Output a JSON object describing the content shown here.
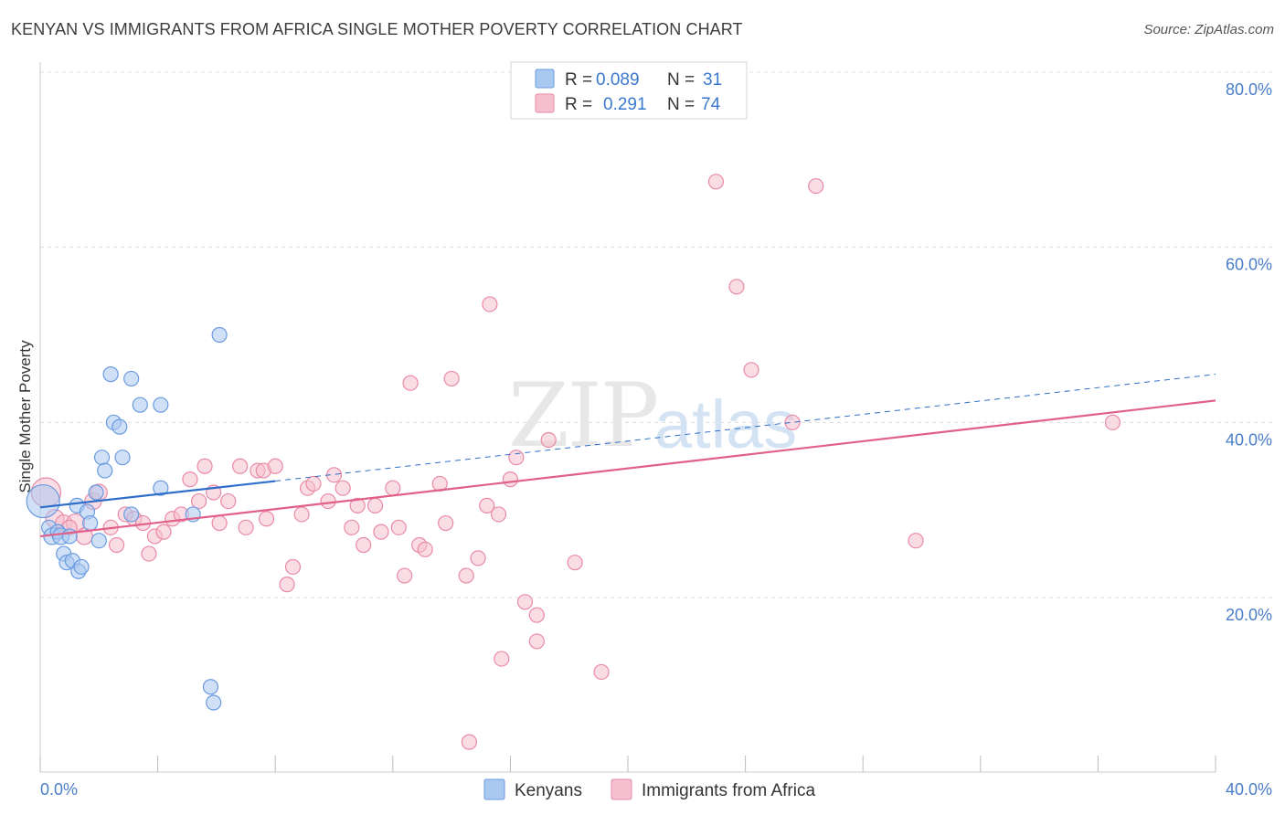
{
  "title": "KENYAN VS IMMIGRANTS FROM AFRICA SINGLE MOTHER POVERTY CORRELATION CHART",
  "source": "Source: ZipAtlas.com",
  "watermark": {
    "zip": "ZIP",
    "atlas": "atlas"
  },
  "colors": {
    "blue_fill": "#a9c9f0",
    "blue_stroke": "#6a9be0",
    "blue_line": "#2f6ec9",
    "pink_fill": "#f6bfcf",
    "pink_stroke": "#e98aa6",
    "pink_line": "#e0608a",
    "grid": "#dddddd",
    "tick_text": "#4a7ec9"
  },
  "legend": {
    "rows": [
      {
        "r_label": "R =",
        "r_value": "0.089",
        "n_label": "N =",
        "n_value": "31"
      },
      {
        "r_label": "R =",
        "r_value": "0.291",
        "n_label": "N =",
        "n_value": "74"
      }
    ]
  },
  "bottom_legend": [
    "Kenyans",
    "Immigrants from Africa"
  ],
  "chart_data": {
    "type": "scatter",
    "title": "KENYAN VS IMMIGRANTS FROM AFRICA SINGLE MOTHER POVERTY CORRELATION CHART",
    "xlabel": "",
    "ylabel": "Single Mother Poverty",
    "xlim": [
      0,
      40
    ],
    "ylim": [
      0,
      80
    ],
    "x_tick_labels": [
      "0.0%",
      "40.0%"
    ],
    "y_ticks": [
      20,
      40,
      60,
      80
    ],
    "y_tick_labels": [
      "20.0%",
      "40.0%",
      "60.0%",
      "80.0%"
    ],
    "grid": true,
    "legend_position": "top-center",
    "series": [
      {
        "name": "Kenyans",
        "r": 0.089,
        "n": 31,
        "trend": {
          "x0": 0,
          "y0": 30.3,
          "x1": 8,
          "y1": 33.3,
          "dashed_to_x": 40,
          "dashed_y1": 45.5
        },
        "points": [
          [
            0.1,
            31.0,
            18
          ],
          [
            0.3,
            28.0,
            8
          ],
          [
            0.4,
            27.0,
            9
          ],
          [
            0.6,
            27.5,
            8
          ],
          [
            0.7,
            27.0,
            9
          ],
          [
            0.8,
            25.0,
            8
          ],
          [
            0.9,
            24.0,
            8
          ],
          [
            1.1,
            24.2,
            8
          ],
          [
            1.3,
            23.0,
            8
          ],
          [
            1.4,
            23.5,
            8
          ],
          [
            1.25,
            30.5,
            8
          ],
          [
            1.6,
            29.8,
            8
          ],
          [
            1.7,
            28.5,
            8
          ],
          [
            1.9,
            32.0,
            8
          ],
          [
            2.0,
            26.5,
            8
          ],
          [
            2.1,
            36.0,
            8
          ],
          [
            2.2,
            34.5,
            8
          ],
          [
            2.4,
            45.5,
            8
          ],
          [
            2.5,
            40.0,
            8
          ],
          [
            2.7,
            39.5,
            8
          ],
          [
            2.8,
            36.0,
            8
          ],
          [
            3.1,
            29.5,
            8
          ],
          [
            3.1,
            45.0,
            8
          ],
          [
            3.4,
            42.0,
            8
          ],
          [
            4.1,
            42.0,
            8
          ],
          [
            4.1,
            32.5,
            8
          ],
          [
            5.2,
            29.5,
            8
          ],
          [
            5.8,
            9.8,
            8
          ],
          [
            5.9,
            8.0,
            8
          ],
          [
            6.1,
            50.0,
            8
          ],
          [
            1.0,
            27.0,
            8
          ]
        ]
      },
      {
        "name": "Immigrants from Africa",
        "r": 0.291,
        "n": 74,
        "trend": {
          "x0": 0,
          "y0": 27.0,
          "x1": 40,
          "y1": 42.5
        },
        "points": [
          [
            0.2,
            32.0,
            16
          ],
          [
            0.5,
            29.0,
            10
          ],
          [
            0.8,
            28.5,
            9
          ],
          [
            1.2,
            28.5,
            10
          ],
          [
            1.5,
            27.0,
            9
          ],
          [
            1.8,
            31.0,
            9
          ],
          [
            2.0,
            32.0,
            9
          ],
          [
            2.4,
            28.0,
            8
          ],
          [
            2.6,
            26.0,
            8
          ],
          [
            2.9,
            29.5,
            8
          ],
          [
            3.2,
            29.0,
            8
          ],
          [
            3.5,
            28.5,
            8
          ],
          [
            3.7,
            25.0,
            8
          ],
          [
            3.9,
            27.0,
            8
          ],
          [
            4.2,
            27.5,
            8
          ],
          [
            4.5,
            29.0,
            8
          ],
          [
            4.8,
            29.5,
            8
          ],
          [
            5.1,
            33.5,
            8
          ],
          [
            5.4,
            31.0,
            8
          ],
          [
            5.6,
            35.0,
            8
          ],
          [
            5.9,
            32.0,
            8
          ],
          [
            6.1,
            28.5,
            8
          ],
          [
            6.4,
            31.0,
            8
          ],
          [
            6.8,
            35.0,
            8
          ],
          [
            7.0,
            28.0,
            8
          ],
          [
            7.4,
            34.5,
            8
          ],
          [
            7.6,
            34.5,
            8
          ],
          [
            7.7,
            29.0,
            8
          ],
          [
            8.0,
            35.0,
            8
          ],
          [
            8.4,
            21.5,
            8
          ],
          [
            8.6,
            23.5,
            8
          ],
          [
            8.9,
            29.5,
            8
          ],
          [
            9.1,
            32.5,
            8
          ],
          [
            9.3,
            33.0,
            8
          ],
          [
            9.8,
            31.0,
            8
          ],
          [
            10.0,
            34.0,
            8
          ],
          [
            10.3,
            32.5,
            8
          ],
          [
            10.6,
            28.0,
            8
          ],
          [
            10.8,
            30.5,
            8
          ],
          [
            11.0,
            26.0,
            8
          ],
          [
            11.4,
            30.5,
            8
          ],
          [
            11.6,
            27.5,
            8
          ],
          [
            12.0,
            32.5,
            8
          ],
          [
            12.2,
            28.0,
            8
          ],
          [
            12.4,
            22.5,
            8
          ],
          [
            12.6,
            44.5,
            8
          ],
          [
            12.9,
            26.0,
            8
          ],
          [
            13.1,
            25.5,
            8
          ],
          [
            13.6,
            33.0,
            8
          ],
          [
            13.8,
            28.5,
            8
          ],
          [
            14.0,
            45.0,
            8
          ],
          [
            14.5,
            22.5,
            8
          ],
          [
            14.9,
            24.5,
            8
          ],
          [
            15.2,
            30.5,
            8
          ],
          [
            15.3,
            53.5,
            8
          ],
          [
            15.6,
            29.5,
            8
          ],
          [
            15.7,
            13.0,
            8
          ],
          [
            16.0,
            33.5,
            8
          ],
          [
            16.2,
            36.0,
            8
          ],
          [
            16.5,
            19.5,
            8
          ],
          [
            16.9,
            15.0,
            8
          ],
          [
            16.9,
            18.0,
            8
          ],
          [
            17.3,
            38.0,
            8
          ],
          [
            18.2,
            24.0,
            8
          ],
          [
            19.1,
            11.5,
            8
          ],
          [
            14.6,
            3.5,
            8
          ],
          [
            23.0,
            67.5,
            8
          ],
          [
            23.7,
            55.5,
            8
          ],
          [
            24.2,
            46.0,
            8
          ],
          [
            25.6,
            40.0,
            8
          ],
          [
            26.4,
            67.0,
            8
          ],
          [
            29.8,
            26.5,
            8
          ],
          [
            36.5,
            40.0,
            8
          ],
          [
            1.0,
            28.0,
            8
          ]
        ]
      }
    ]
  }
}
